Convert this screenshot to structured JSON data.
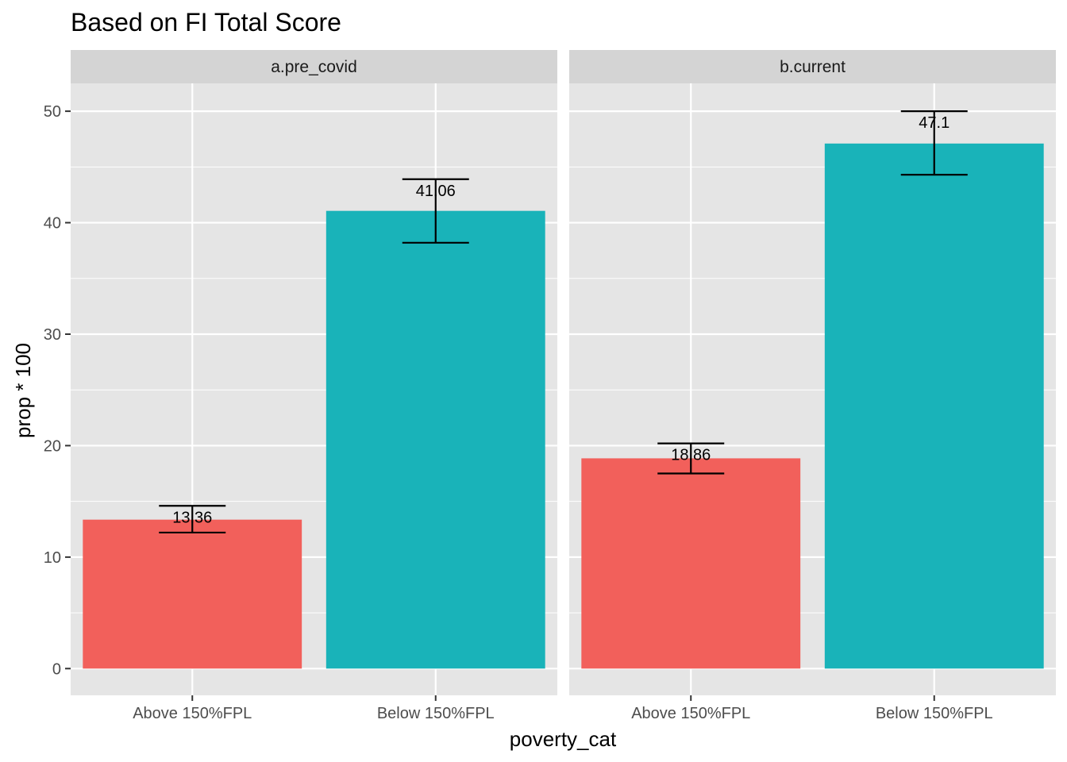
{
  "chart_data": {
    "type": "bar",
    "title": "Based on FI Total Score",
    "xlabel": "poverty_cat",
    "ylabel": "prop * 100",
    "ylim": [
      -2.4,
      52.5
    ],
    "yticks": [
      0,
      10,
      20,
      30,
      40,
      50
    ],
    "categories": [
      "Above 150%FPL",
      "Below 150%FPL"
    ],
    "category_colors": [
      "#F8766D",
      "#00BFC4"
    ],
    "colors": {
      "bar_above": "#F2605B",
      "bar_below": "#19B3B9",
      "panel_bg": "#E5E5E5",
      "strip_bg": "#D4D4D4",
      "grid": "#FFFFFF",
      "errorbar": "#000000"
    },
    "facets": [
      {
        "label": "a.pre_covid",
        "values": [
          13.36,
          41.06
        ],
        "labels": [
          "13.36",
          "41.06"
        ],
        "error_low": [
          12.2,
          38.2
        ],
        "error_high": [
          14.6,
          43.9
        ]
      },
      {
        "label": "b.current",
        "values": [
          18.86,
          47.1
        ],
        "labels": [
          "18.86",
          "47.1"
        ],
        "error_low": [
          17.5,
          44.3
        ],
        "error_high": [
          20.2,
          50.0
        ]
      }
    ],
    "grid": true,
    "legend": "none"
  }
}
